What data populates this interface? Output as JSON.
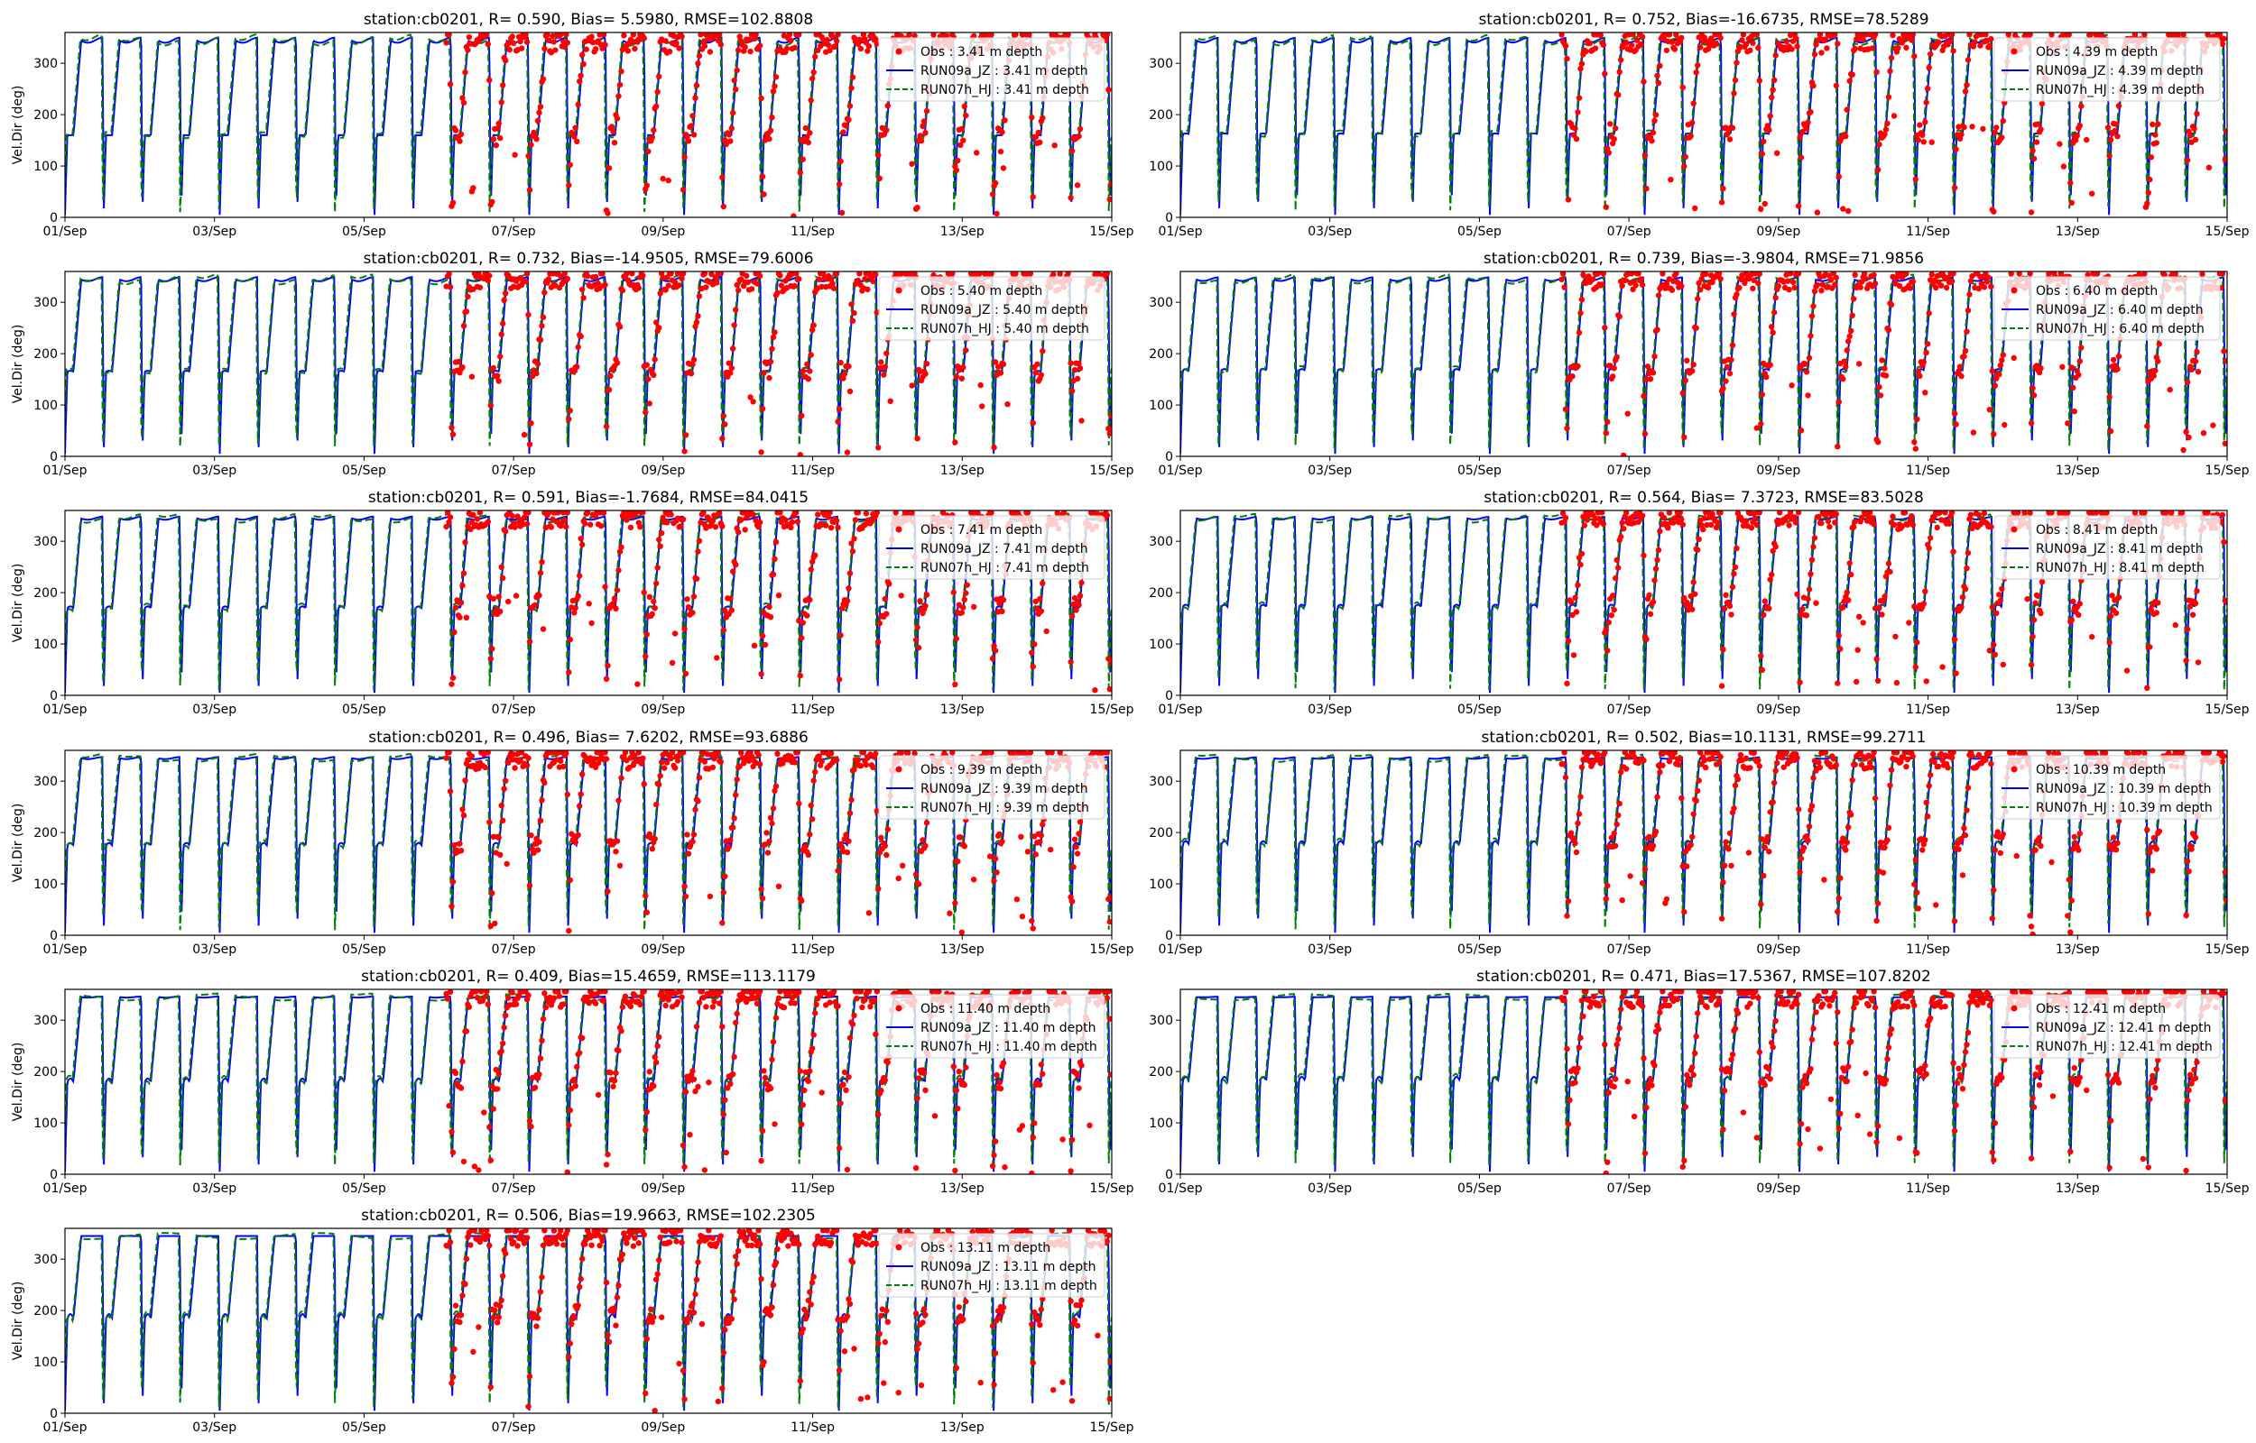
{
  "figure": {
    "background": "#ffffff"
  },
  "series_style": {
    "obs": {
      "color": "#ff0000",
      "marker": "circle"
    },
    "run09a": {
      "color": "#0000ff",
      "line": "solid"
    },
    "run07h": {
      "color": "#008000",
      "line": "dashed"
    }
  },
  "chart_data": [
    {
      "type": "line",
      "title": "station:cb0201, R= 0.590, Bias= 5.5980, RMSE=102.8808",
      "ylabel": "Vel.Dir (deg)",
      "xlim_days": [
        0,
        14
      ],
      "ylim": [
        0,
        360
      ],
      "yticks": [
        0,
        100,
        200,
        300
      ],
      "xtick_labels": [
        "01/Sep",
        "03/Sep",
        "05/Sep",
        "07/Sep",
        "09/Sep",
        "11/Sep",
        "13/Sep",
        "15/Sep"
      ],
      "obs_start_day": 5.1,
      "depth_index": 0,
      "legend": {
        "placement": "top-right",
        "entries": [
          "Obs : 3.41 m depth",
          "RUN09a_JZ : 3.41 m depth",
          "RUN07h_HJ : 3.41 m depth"
        ]
      }
    },
    {
      "type": "line",
      "title": "station:cb0201, R= 0.752, Bias=-16.6735, RMSE=78.5289",
      "ylabel": "",
      "xlim_days": [
        0,
        14
      ],
      "ylim": [
        0,
        360
      ],
      "yticks": [
        0,
        100,
        200,
        300
      ],
      "xtick_labels": [
        "01/Sep",
        "03/Sep",
        "05/Sep",
        "07/Sep",
        "09/Sep",
        "11/Sep",
        "13/Sep",
        "15/Sep"
      ],
      "obs_start_day": 5.1,
      "depth_index": 1,
      "legend": {
        "placement": "top-right",
        "entries": [
          "Obs : 4.39 m depth",
          "RUN09a_JZ : 4.39 m depth",
          "RUN07h_HJ : 4.39 m depth"
        ]
      }
    },
    {
      "type": "line",
      "title": "station:cb0201, R= 0.732, Bias=-14.9505, RMSE=79.6006",
      "ylabel": "Vel.Dir (deg)",
      "xlim_days": [
        0,
        14
      ],
      "ylim": [
        0,
        360
      ],
      "yticks": [
        0,
        100,
        200,
        300
      ],
      "xtick_labels": [
        "01/Sep",
        "03/Sep",
        "05/Sep",
        "07/Sep",
        "09/Sep",
        "11/Sep",
        "13/Sep",
        "15/Sep"
      ],
      "obs_start_day": 5.1,
      "depth_index": 2,
      "legend": {
        "placement": "top-right",
        "entries": [
          "Obs : 5.40 m depth",
          "RUN09a_JZ : 5.40 m depth",
          "RUN07h_HJ : 5.40 m depth"
        ]
      }
    },
    {
      "type": "line",
      "title": "station:cb0201, R= 0.739, Bias=-3.9804, RMSE=71.9856",
      "ylabel": "",
      "xlim_days": [
        0,
        14
      ],
      "ylim": [
        0,
        360
      ],
      "yticks": [
        0,
        100,
        200,
        300
      ],
      "xtick_labels": [
        "01/Sep",
        "03/Sep",
        "05/Sep",
        "07/Sep",
        "09/Sep",
        "11/Sep",
        "13/Sep",
        "15/Sep"
      ],
      "obs_start_day": 5.1,
      "depth_index": 3,
      "legend": {
        "placement": "top-right",
        "entries": [
          "Obs : 6.40 m depth",
          "RUN09a_JZ : 6.40 m depth",
          "RUN07h_HJ : 6.40 m depth"
        ]
      }
    },
    {
      "type": "line",
      "title": "station:cb0201, R= 0.591, Bias=-1.7684, RMSE=84.0415",
      "ylabel": "Vel.Dir (deg)",
      "xlim_days": [
        0,
        14
      ],
      "ylim": [
        0,
        360
      ],
      "yticks": [
        0,
        100,
        200,
        300
      ],
      "xtick_labels": [
        "01/Sep",
        "03/Sep",
        "05/Sep",
        "07/Sep",
        "09/Sep",
        "11/Sep",
        "13/Sep",
        "15/Sep"
      ],
      "obs_start_day": 5.1,
      "depth_index": 4,
      "legend": {
        "placement": "top-right",
        "entries": [
          "Obs : 7.41 m depth",
          "RUN09a_JZ : 7.41 m depth",
          "RUN07h_HJ : 7.41 m depth"
        ]
      }
    },
    {
      "type": "line",
      "title": "station:cb0201, R= 0.564, Bias= 7.3723, RMSE=83.5028",
      "ylabel": "",
      "xlim_days": [
        0,
        14
      ],
      "ylim": [
        0,
        360
      ],
      "yticks": [
        0,
        100,
        200,
        300
      ],
      "xtick_labels": [
        "01/Sep",
        "03/Sep",
        "05/Sep",
        "07/Sep",
        "09/Sep",
        "11/Sep",
        "13/Sep",
        "15/Sep"
      ],
      "obs_start_day": 5.1,
      "depth_index": 5,
      "legend": {
        "placement": "top-right",
        "entries": [
          "Obs : 8.41 m depth",
          "RUN09a_JZ : 8.41 m depth",
          "RUN07h_HJ : 8.41 m depth"
        ]
      }
    },
    {
      "type": "line",
      "title": "station:cb0201, R= 0.496, Bias= 7.6202, RMSE=93.6886",
      "ylabel": "Vel.Dir (deg)",
      "xlim_days": [
        0,
        14
      ],
      "ylim": [
        0,
        360
      ],
      "yticks": [
        0,
        100,
        200,
        300
      ],
      "xtick_labels": [
        "01/Sep",
        "03/Sep",
        "05/Sep",
        "07/Sep",
        "09/Sep",
        "11/Sep",
        "13/Sep",
        "15/Sep"
      ],
      "obs_start_day": 5.1,
      "depth_index": 6,
      "legend": {
        "placement": "top-right",
        "entries": [
          "Obs : 9.39 m depth",
          "RUN09a_JZ : 9.39 m depth",
          "RUN07h_HJ : 9.39 m depth"
        ]
      }
    },
    {
      "type": "line",
      "title": "station:cb0201, R= 0.502, Bias=10.1131, RMSE=99.2711",
      "ylabel": "",
      "xlim_days": [
        0,
        14
      ],
      "ylim": [
        0,
        360
      ],
      "yticks": [
        0,
        100,
        200,
        300
      ],
      "xtick_labels": [
        "01/Sep",
        "03/Sep",
        "05/Sep",
        "07/Sep",
        "09/Sep",
        "11/Sep",
        "13/Sep",
        "15/Sep"
      ],
      "obs_start_day": 5.1,
      "depth_index": 7,
      "legend": {
        "placement": "top-right",
        "entries": [
          "Obs : 10.39 m depth",
          "RUN09a_JZ : 10.39 m depth",
          "RUN07h_HJ : 10.39 m depth"
        ]
      }
    },
    {
      "type": "line",
      "title": "station:cb0201, R= 0.409, Bias=15.4659, RMSE=113.1179",
      "ylabel": "Vel.Dir (deg)",
      "xlim_days": [
        0,
        14
      ],
      "ylim": [
        0,
        360
      ],
      "yticks": [
        0,
        100,
        200,
        300
      ],
      "xtick_labels": [
        "01/Sep",
        "03/Sep",
        "05/Sep",
        "07/Sep",
        "09/Sep",
        "11/Sep",
        "13/Sep",
        "15/Sep"
      ],
      "obs_start_day": 5.1,
      "depth_index": 8,
      "legend": {
        "placement": "top-right",
        "entries": [
          "Obs : 11.40 m depth",
          "RUN09a_JZ : 11.40 m depth",
          "RUN07h_HJ : 11.40 m depth"
        ]
      }
    },
    {
      "type": "line",
      "title": "station:cb0201, R= 0.471, Bias=17.5367, RMSE=107.8202",
      "ylabel": "",
      "xlim_days": [
        0,
        14
      ],
      "ylim": [
        0,
        360
      ],
      "yticks": [
        0,
        100,
        200,
        300
      ],
      "xtick_labels": [
        "01/Sep",
        "03/Sep",
        "05/Sep",
        "07/Sep",
        "09/Sep",
        "11/Sep",
        "13/Sep",
        "15/Sep"
      ],
      "obs_start_day": 5.1,
      "depth_index": 9,
      "legend": {
        "placement": "top-right",
        "entries": [
          "Obs : 12.41 m depth",
          "RUN09a_JZ : 12.41 m depth",
          "RUN07h_HJ : 12.41 m depth"
        ]
      }
    },
    {
      "type": "line",
      "title": "station:cb0201, R= 0.506, Bias=19.9663, RMSE=102.2305",
      "ylabel": "Vel.Dir (deg)",
      "xlim_days": [
        0,
        14
      ],
      "ylim": [
        0,
        360
      ],
      "yticks": [
        0,
        100,
        200,
        300
      ],
      "xtick_labels": [
        "01/Sep",
        "03/Sep",
        "05/Sep",
        "07/Sep",
        "09/Sep",
        "11/Sep",
        "13/Sep",
        "15/Sep"
      ],
      "obs_start_day": 5.1,
      "depth_index": 10,
      "legend": {
        "placement": "top-right",
        "entries": [
          "Obs : 13.11 m depth",
          "RUN09a_JZ : 13.11 m depth",
          "RUN07h_HJ : 13.11 m depth"
        ]
      }
    }
  ]
}
